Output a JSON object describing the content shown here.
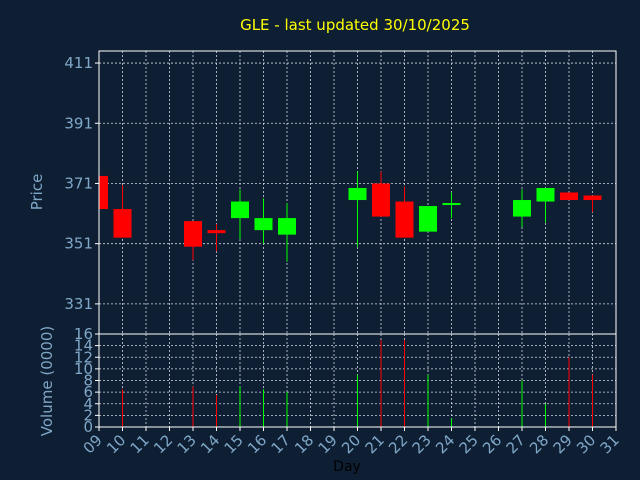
{
  "chart_data": {
    "type": "candlestick",
    "title": "GLE - last updated 30/10/2025",
    "xlabel": "Day",
    "ylabel": "Price",
    "volume_label": "Volume (0000)",
    "x_ticks": [
      "09",
      "10",
      "11",
      "12",
      "13",
      "14",
      "15",
      "16",
      "17",
      "18",
      "19",
      "20",
      "21",
      "22",
      "23",
      "24",
      "25",
      "26",
      "27",
      "28",
      "29",
      "30",
      "31"
    ],
    "price_ticks": [
      331,
      351,
      371,
      391,
      411
    ],
    "price_range": [
      321,
      415
    ],
    "volume_ticks": [
      0,
      2,
      4,
      6,
      8,
      10,
      12,
      14,
      16
    ],
    "volume_range": [
      0,
      16
    ],
    "grid": true,
    "up_color": "#00ff00",
    "down_color": "#ff0000",
    "candles": [
      {
        "day": 9,
        "open": 373.5,
        "close": 362.5,
        "high": 373.5,
        "low": 362.5,
        "volume": 0
      },
      {
        "day": 10,
        "open": 362.5,
        "close": 353.0,
        "high": 370.5,
        "low": 353.0,
        "volume": 6.5
      },
      {
        "day": 13,
        "open": 358.5,
        "close": 350.0,
        "high": 358.5,
        "low": 345.5,
        "volume": 7.0
      },
      {
        "day": 14,
        "open": 355.5,
        "close": 354.5,
        "high": 357.5,
        "low": 348.5,
        "volume": 5.5
      },
      {
        "day": 15,
        "open": 359.5,
        "close": 365.0,
        "high": 369.0,
        "low": 352.5,
        "volume": 7.0
      },
      {
        "day": 16,
        "open": 355.5,
        "close": 359.5,
        "high": 366.0,
        "low": 351.0,
        "volume": 6.5
      },
      {
        "day": 17,
        "open": 354.0,
        "close": 359.5,
        "high": 364.5,
        "low": 345.0,
        "volume": 6.0
      },
      {
        "day": 20,
        "open": 365.5,
        "close": 369.5,
        "high": 375.0,
        "low": 350.0,
        "volume": 9.0
      },
      {
        "day": 21,
        "open": 371.0,
        "close": 360.0,
        "high": 375.0,
        "low": 360.0,
        "volume": 15.0
      },
      {
        "day": 22,
        "open": 365.0,
        "close": 353.0,
        "high": 370.0,
        "low": 353.0,
        "volume": 15.0
      },
      {
        "day": 23,
        "open": 355.0,
        "close": 363.5,
        "high": 363.5,
        "low": 355.0,
        "volume": 9.0
      },
      {
        "day": 24,
        "open": 364.0,
        "close": 364.5,
        "high": 368.0,
        "low": 359.5,
        "volume": 1.5
      },
      {
        "day": 27,
        "open": 360.0,
        "close": 365.5,
        "high": 369.0,
        "low": 356.5,
        "volume": 8.0
      },
      {
        "day": 28,
        "open": 365.0,
        "close": 369.5,
        "high": 369.5,
        "low": 358.0,
        "volume": 4.0
      },
      {
        "day": 29,
        "open": 368.0,
        "close": 365.5,
        "high": 368.0,
        "low": 365.5,
        "volume": 12.0
      },
      {
        "day": 30,
        "open": 367.0,
        "close": 365.5,
        "high": 367.0,
        "low": 361.5,
        "volume": 9.0
      }
    ]
  }
}
